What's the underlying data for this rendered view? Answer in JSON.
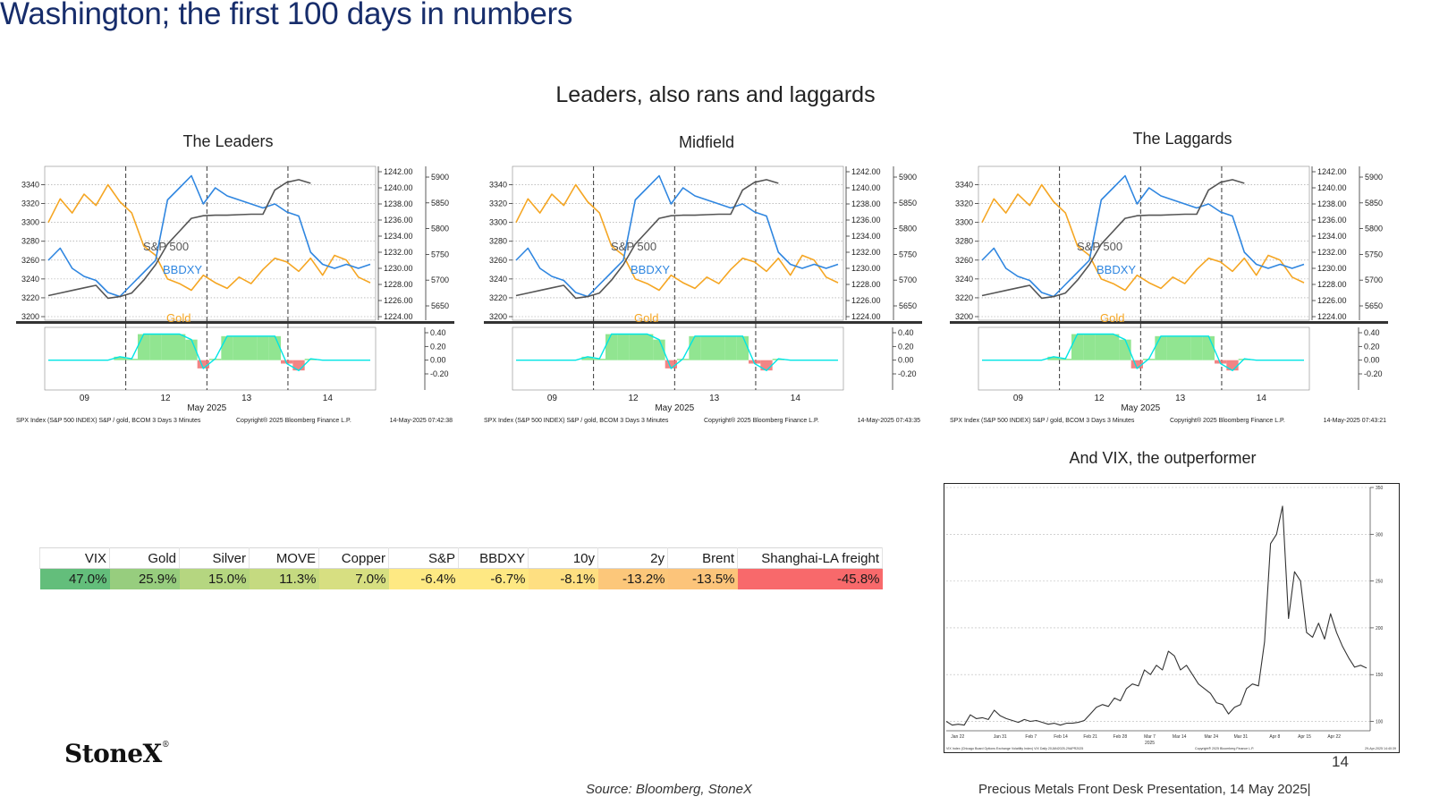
{
  "page": {
    "title": "Washington; the first 100 days in numbers",
    "subtitle": "Leaders, also rans and laggards",
    "logo": "StoneX",
    "logo_mark": "®",
    "source": "Source: Bloomberg, StoneX",
    "footer": "Precious Metals Front Desk Presentation, 14 May 2025|",
    "page_number": "14"
  },
  "colors": {
    "title": "#172d6b",
    "gold_series": "#f5a623",
    "bbdxy_series": "#2f86e0",
    "sp500_series": "#555555",
    "positive_fill": "#7ee07e",
    "negative_fill": "#f07070",
    "indicator_line": "#00e5e5"
  },
  "performance_table": {
    "headers": [
      "VIX",
      "Gold",
      "Silver",
      "MOVE",
      "Copper",
      "S&P",
      "BBDXY",
      "10y",
      "2y",
      "Brent",
      "Shanghai-LA freight"
    ],
    "values": [
      "47.0%",
      "25.9%",
      "15.0%",
      "11.3%",
      "7.0%",
      "-6.4%",
      "-6.7%",
      "-8.1%",
      "-13.2%",
      "-13.5%",
      "-45.8%"
    ],
    "cell_colors": [
      "#63be7b",
      "#97cd7e",
      "#b5d680",
      "#c5da80",
      "#d7df81",
      "#fee983",
      "#fee883",
      "#fedf81",
      "#fcc77a",
      "#fcc47a",
      "#f8696b"
    ]
  },
  "chart_data": [
    {
      "type": "line",
      "title": "The Leaders",
      "x_ticks": [
        "09",
        "12",
        "13",
        "14"
      ],
      "x_caption": "May 2025",
      "left_axis_ticks": [
        "3340",
        "3320",
        "3300",
        "3280",
        "3260",
        "3240",
        "3220",
        "3200"
      ],
      "left_ylim": [
        3200,
        3350
      ],
      "right_axis_1_ticks": [
        "1242.00",
        "1240.00",
        "1238.00",
        "1236.00",
        "1234.00",
        "1232.00",
        "1230.00",
        "1228.00",
        "1226.00",
        "1224.00"
      ],
      "right_axis_2_ticks": [
        "5900",
        "5850",
        "5800",
        "5750",
        "5700",
        "5650"
      ],
      "lower_axis_ticks": [
        "0.40",
        "0.20",
        "0.00",
        "-0.20"
      ],
      "series_labels": [
        {
          "name": "S&P 500",
          "color": "#555555"
        },
        {
          "name": "BBDXY",
          "color": "#2f86e0"
        },
        {
          "name": "Gold",
          "color": "#f5a623"
        }
      ],
      "series": [
        {
          "name": "Gold",
          "values": [
            3300,
            3325,
            3310,
            3330,
            3318,
            3340,
            3322,
            3310,
            3275,
            3265,
            3240,
            3235,
            3228,
            3244,
            3236,
            3230,
            3242,
            3235,
            3250,
            3262,
            3258,
            3248,
            3262,
            3244,
            3265,
            3260,
            3242,
            3236
          ]
        },
        {
          "name": "BBDXY",
          "values": [
            1231.0,
            1232.5,
            1230.0,
            1229.0,
            1228.5,
            1227.0,
            1226.5,
            1228.0,
            1229.5,
            1231.0,
            1238.5,
            1240.0,
            1241.5,
            1238.0,
            1240.0,
            1239.0,
            1238.5,
            1238.0,
            1237.5,
            1238.0,
            1237.0,
            1236.5,
            1232.0,
            1230.5,
            1230.0,
            1230.5,
            1230.0,
            1230.5
          ]
        },
        {
          "name": "S&P 500",
          "values": [
            5670,
            5675,
            5680,
            5685,
            5690,
            5665,
            5668,
            5675,
            5700,
            5730,
            5770,
            5795,
            5820,
            5825,
            5826,
            5826,
            5827,
            5828,
            5828,
            5875,
            5890,
            5895,
            5888,
            null,
            null,
            null,
            null,
            null
          ]
        }
      ],
      "lower_panel": {
        "values": [
          0,
          0,
          0,
          0,
          0,
          0,
          0.05,
          0.02,
          0.38,
          0.38,
          0.38,
          0.38,
          0.3,
          -0.12,
          0.02,
          0.35,
          0.35,
          0.35,
          0.35,
          0.35,
          -0.05,
          -0.15,
          0.02,
          0,
          0,
          0,
          0,
          0
        ]
      },
      "footnote": "SPX Index (S&P 500 INDEX) S&P / gold, BCOM 3 Days 3 Minutes",
      "copyright": "Copyright® 2025 Bloomberg Finance L.P.",
      "timestamp": "14-May-2025 07:42:38"
    },
    {
      "type": "line",
      "title": "Midfield",
      "x_ticks": [
        "09",
        "12",
        "13",
        "14"
      ],
      "x_caption": "May 2025",
      "left_axis_ticks": [
        "3340",
        "3320",
        "3300",
        "3280",
        "3260",
        "3240",
        "3220",
        "3200"
      ],
      "left_ylim": [
        3200,
        3350
      ],
      "right_axis_1_ticks": [
        "1242.00",
        "1240.00",
        "1238.00",
        "1236.00",
        "1234.00",
        "1232.00",
        "1230.00",
        "1228.00",
        "1226.00",
        "1224.00"
      ],
      "right_axis_2_ticks": [
        "5900",
        "5850",
        "5800",
        "5750",
        "5700",
        "5650"
      ],
      "lower_axis_ticks": [
        "0.40",
        "0.20",
        "0.00",
        "-0.20"
      ],
      "series_labels": [
        {
          "name": "S&P 500",
          "color": "#555555"
        },
        {
          "name": "BBDXY",
          "color": "#2f86e0"
        },
        {
          "name": "Gold",
          "color": "#f5a623"
        }
      ],
      "series": [
        {
          "name": "Gold",
          "values": [
            3300,
            3325,
            3310,
            3330,
            3318,
            3340,
            3322,
            3310,
            3275,
            3265,
            3240,
            3235,
            3228,
            3244,
            3236,
            3230,
            3242,
            3235,
            3250,
            3262,
            3258,
            3248,
            3262,
            3244,
            3265,
            3260,
            3242,
            3236
          ]
        },
        {
          "name": "BBDXY",
          "values": [
            1231.0,
            1232.5,
            1230.0,
            1229.0,
            1228.5,
            1227.0,
            1226.5,
            1228.0,
            1229.5,
            1231.0,
            1238.5,
            1240.0,
            1241.5,
            1238.0,
            1240.0,
            1239.0,
            1238.5,
            1238.0,
            1237.5,
            1238.0,
            1237.0,
            1236.5,
            1232.0,
            1230.5,
            1230.0,
            1230.5,
            1230.0,
            1230.5
          ]
        },
        {
          "name": "S&P 500",
          "values": [
            5670,
            5675,
            5680,
            5685,
            5690,
            5665,
            5668,
            5675,
            5700,
            5730,
            5770,
            5795,
            5820,
            5825,
            5826,
            5826,
            5827,
            5828,
            5828,
            5875,
            5890,
            5895,
            5888,
            null,
            null,
            null,
            null,
            null
          ]
        }
      ],
      "lower_panel": {
        "values": [
          0,
          0,
          0,
          0,
          0,
          0,
          0.05,
          0.02,
          0.38,
          0.38,
          0.38,
          0.38,
          0.3,
          -0.12,
          0.02,
          0.35,
          0.35,
          0.35,
          0.35,
          0.35,
          -0.05,
          -0.15,
          0.02,
          0,
          0,
          0,
          0,
          0
        ]
      },
      "footnote": "SPX Index (S&P 500 INDEX) S&P / gold, BCOM 3 Days 3 Minutes",
      "copyright": "Copyright® 2025 Bloomberg Finance L.P.",
      "timestamp": "14-May-2025 07:43:35"
    },
    {
      "type": "line",
      "title": "The Laggards",
      "x_ticks": [
        "09",
        "12",
        "13",
        "14"
      ],
      "x_caption": "May 2025",
      "left_axis_ticks": [
        "3340",
        "3320",
        "3300",
        "3280",
        "3260",
        "3240",
        "3220",
        "3200"
      ],
      "left_ylim": [
        3200,
        3350
      ],
      "right_axis_1_ticks": [
        "1242.00",
        "1240.00",
        "1238.00",
        "1236.00",
        "1234.00",
        "1232.00",
        "1230.00",
        "1228.00",
        "1226.00",
        "1224.00"
      ],
      "right_axis_2_ticks": [
        "5900",
        "5850",
        "5800",
        "5750",
        "5700",
        "5650"
      ],
      "lower_axis_ticks": [
        "0.40",
        "0.20",
        "0.00",
        "-0.20"
      ],
      "series_labels": [
        {
          "name": "S&P 500",
          "color": "#555555"
        },
        {
          "name": "BBDXY",
          "color": "#2f86e0"
        },
        {
          "name": "Gold",
          "color": "#f5a623"
        }
      ],
      "series": [
        {
          "name": "Gold",
          "values": [
            3300,
            3325,
            3310,
            3330,
            3318,
            3340,
            3322,
            3310,
            3275,
            3265,
            3240,
            3235,
            3228,
            3244,
            3236,
            3230,
            3242,
            3235,
            3250,
            3262,
            3258,
            3248,
            3262,
            3244,
            3265,
            3260,
            3242,
            3236
          ]
        },
        {
          "name": "BBDXY",
          "values": [
            1231.0,
            1232.5,
            1230.0,
            1229.0,
            1228.5,
            1227.0,
            1226.5,
            1228.0,
            1229.5,
            1231.0,
            1238.5,
            1240.0,
            1241.5,
            1238.0,
            1240.0,
            1239.0,
            1238.5,
            1238.0,
            1237.5,
            1238.0,
            1237.0,
            1236.5,
            1232.0,
            1230.5,
            1230.0,
            1230.5,
            1230.0,
            1230.5
          ]
        },
        {
          "name": "S&P 500",
          "values": [
            5670,
            5675,
            5680,
            5685,
            5690,
            5665,
            5668,
            5675,
            5700,
            5730,
            5770,
            5795,
            5820,
            5825,
            5826,
            5826,
            5827,
            5828,
            5828,
            5875,
            5890,
            5895,
            5888,
            null,
            null,
            null,
            null,
            null
          ]
        }
      ],
      "lower_panel": {
        "values": [
          0,
          0,
          0,
          0,
          0,
          0,
          0.05,
          0.02,
          0.38,
          0.38,
          0.38,
          0.38,
          0.3,
          -0.12,
          0.02,
          0.35,
          0.35,
          0.35,
          0.35,
          0.35,
          -0.05,
          -0.15,
          0.02,
          0,
          0,
          0,
          0,
          0
        ]
      },
      "footnote": "SPX Index (S&P 500 INDEX) S&P / gold, BCOM 3 Days 3 Minutes",
      "copyright": "Copyright® 2025 Bloomberg Finance L.P.",
      "timestamp": "14-May-2025 07:43:21"
    },
    {
      "type": "line",
      "title": "And VIX, the outperformer",
      "x_ticks": [
        "Jan 22",
        "Jan 31",
        "Feb 7",
        "Feb 14",
        "Feb 21",
        "Feb 28",
        "Mar 7",
        "Mar 14",
        "Mar 24",
        "Mar 31",
        "Apr 8",
        "Apr 15",
        "Apr 22"
      ],
      "x_caption": "2025",
      "y_ticks": [
        "350",
        "300",
        "250",
        "200",
        "150",
        "100"
      ],
      "ylim": [
        90,
        350
      ],
      "grid": true,
      "series": [
        {
          "name": "VIX",
          "values": [
            100,
            96,
            97,
            96,
            107,
            103,
            104,
            102,
            112,
            106,
            103,
            101,
            99,
            102,
            100,
            101,
            99,
            97,
            98,
            96,
            98,
            98,
            99,
            101,
            108,
            115,
            118,
            116,
            125,
            122,
            135,
            140,
            138,
            155,
            150,
            160,
            155,
            175,
            170,
            155,
            160,
            150,
            140,
            135,
            130,
            120,
            118,
            108,
            115,
            118,
            135,
            140,
            138,
            185,
            290,
            300,
            330,
            210,
            260,
            250,
            195,
            190,
            205,
            188,
            215,
            195,
            180,
            168,
            158,
            160,
            157
          ]
        }
      ],
      "footnote": "VIX Index (Chicago Board Options Exchange Volatility Index) VIX Daily 20JAN2025-29APR2025",
      "copyright": "Copyright® 2025 Bloomberg Finance L.P.",
      "timestamp": "29-Apr-2025 14:40:39"
    }
  ]
}
